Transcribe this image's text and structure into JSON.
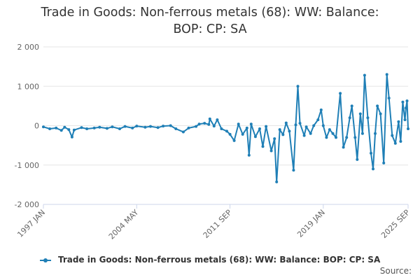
{
  "title_line1": "Trade in Goods: Non-ferrous metals (68): WW: Balance:",
  "title_line2": "BOP: CP: SA",
  "legend_label": "Trade in Goods: Non-ferrous metals (68): WW: Balance: BOP: CP: SA",
  "source_label": "Source:",
  "colors": {
    "series": "#1f7fb6",
    "grid": "#e6e6e6",
    "axis": "#ccd6eb"
  },
  "chart_data": {
    "type": "line",
    "title": "Trade in Goods: Non-ferrous metals (68): WW: Balance: BOP: CP: SA",
    "xlabel": "",
    "ylabel": "",
    "x_range": [
      "1997-01",
      "2025-09"
    ],
    "ylim": [
      -2000,
      2000
    ],
    "y_ticks": [
      {
        "value": 2000,
        "label": "2 000"
      },
      {
        "value": 1000,
        "label": "1 000"
      },
      {
        "value": 0,
        "label": "0"
      },
      {
        "value": -1000,
        "label": "-1 000"
      },
      {
        "value": -2000,
        "label": "-2 000"
      }
    ],
    "x_ticks": [
      {
        "value": "1997-01",
        "label": "1997 JAN"
      },
      {
        "value": "2004-05",
        "label": "2004 MAY"
      },
      {
        "value": "2011-09",
        "label": "2011 SEP"
      },
      {
        "value": "2019-01",
        "label": "2019 JAN"
      },
      {
        "value": "2025-09",
        "label": "2025 SEP"
      }
    ],
    "grid": true,
    "legend_position": "bottom",
    "series": [
      {
        "name": "Trade in Goods: Non-ferrous metals (68): WW: Balance: BOP: CP: SA",
        "points": [
          [
            "1997-01",
            -30
          ],
          [
            "1997-07",
            -80
          ],
          [
            "1998-01",
            -60
          ],
          [
            "1998-06",
            -120
          ],
          [
            "1998-09",
            -40
          ],
          [
            "1999-01",
            -100
          ],
          [
            "1999-04",
            -290
          ],
          [
            "1999-06",
            -110
          ],
          [
            "2000-01",
            -50
          ],
          [
            "2000-06",
            -80
          ],
          [
            "2001-01",
            -60
          ],
          [
            "2001-06",
            -40
          ],
          [
            "2002-01",
            -70
          ],
          [
            "2002-06",
            -30
          ],
          [
            "2003-01",
            -80
          ],
          [
            "2003-06",
            -20
          ],
          [
            "2004-01",
            -60
          ],
          [
            "2004-05",
            -10
          ],
          [
            "2005-01",
            -40
          ],
          [
            "2005-06",
            -20
          ],
          [
            "2006-01",
            -50
          ],
          [
            "2006-06",
            -10
          ],
          [
            "2007-01",
            0
          ],
          [
            "2007-06",
            -80
          ],
          [
            "2008-01",
            -160
          ],
          [
            "2008-06",
            -60
          ],
          [
            "2009-01",
            -20
          ],
          [
            "2009-04",
            40
          ],
          [
            "2009-09",
            60
          ],
          [
            "2010-01",
            30
          ],
          [
            "2010-02",
            170
          ],
          [
            "2010-06",
            -10
          ],
          [
            "2010-09",
            150
          ],
          [
            "2011-01",
            -80
          ],
          [
            "2011-06",
            -140
          ],
          [
            "2011-09",
            -220
          ],
          [
            "2012-01",
            -380
          ],
          [
            "2012-05",
            40
          ],
          [
            "2012-09",
            -220
          ],
          [
            "2013-01",
            -60
          ],
          [
            "2013-03",
            -750
          ],
          [
            "2013-05",
            40
          ],
          [
            "2013-09",
            -280
          ],
          [
            "2014-01",
            -80
          ],
          [
            "2014-04",
            -530
          ],
          [
            "2014-07",
            -20
          ],
          [
            "2014-12",
            -640
          ],
          [
            "2015-03",
            -330
          ],
          [
            "2015-05",
            -1430
          ],
          [
            "2015-08",
            -100
          ],
          [
            "2015-11",
            -230
          ],
          [
            "2016-02",
            70
          ],
          [
            "2016-05",
            -140
          ],
          [
            "2016-09",
            -1130
          ],
          [
            "2016-11",
            20
          ],
          [
            "2017-01",
            1000
          ],
          [
            "2017-03",
            60
          ],
          [
            "2017-07",
            -250
          ],
          [
            "2017-09",
            -30
          ],
          [
            "2018-01",
            -200
          ],
          [
            "2018-04",
            0
          ],
          [
            "2018-08",
            150
          ],
          [
            "2018-11",
            400
          ],
          [
            "2019-01",
            0
          ],
          [
            "2019-04",
            -300
          ],
          [
            "2019-07",
            -100
          ],
          [
            "2019-10",
            -200
          ],
          [
            "2020-01",
            -300
          ],
          [
            "2020-05",
            820
          ],
          [
            "2020-08",
            -550
          ],
          [
            "2020-11",
            -300
          ],
          [
            "2021-02",
            200
          ],
          [
            "2021-04",
            500
          ],
          [
            "2021-07",
            -300
          ],
          [
            "2021-09",
            -860
          ],
          [
            "2021-12",
            300
          ],
          [
            "2022-02",
            -200
          ],
          [
            "2022-04",
            1280
          ],
          [
            "2022-07",
            200
          ],
          [
            "2022-10",
            -700
          ],
          [
            "2022-12",
            -1100
          ],
          [
            "2023-02",
            -200
          ],
          [
            "2023-04",
            500
          ],
          [
            "2023-07",
            300
          ],
          [
            "2023-10",
            -950
          ],
          [
            "2024-01",
            1300
          ],
          [
            "2024-03",
            700
          ],
          [
            "2024-06",
            -250
          ],
          [
            "2024-09",
            -450
          ],
          [
            "2024-12",
            100
          ],
          [
            "2025-02",
            -400
          ],
          [
            "2025-04",
            600
          ],
          [
            "2025-06",
            150
          ],
          [
            "2025-07",
            450
          ],
          [
            "2025-08",
            630
          ],
          [
            "2025-09",
            -80
          ]
        ]
      }
    ]
  }
}
